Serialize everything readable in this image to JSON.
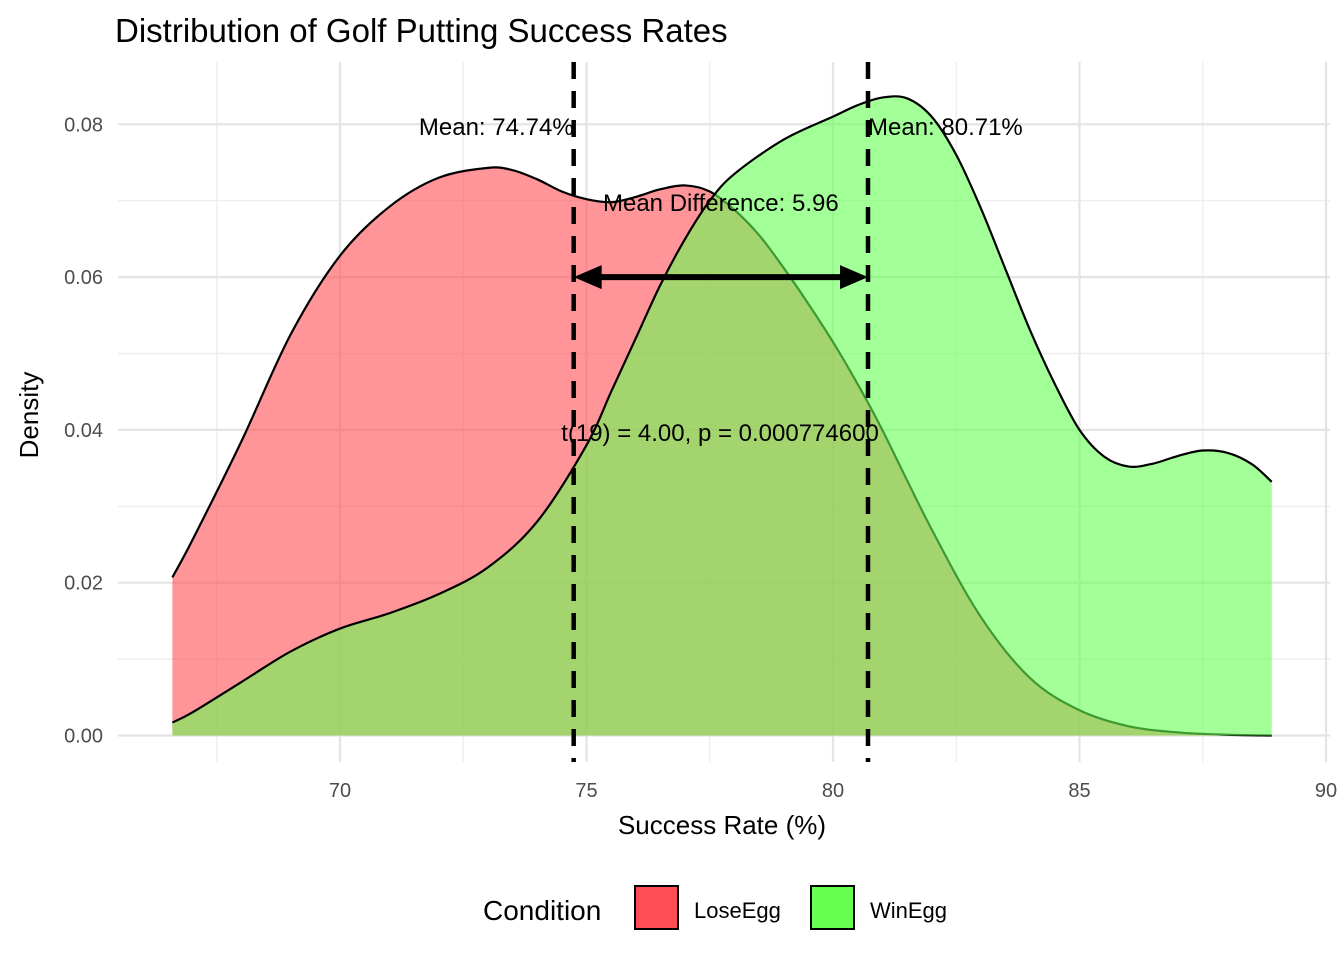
{
  "chart_data": {
    "type": "area",
    "title": "Distribution of Golf Putting Success Rates",
    "xlabel": "Success Rate (%)",
    "ylabel": "Density",
    "xlim": [
      66.5,
      90
    ],
    "ylim": [
      0,
      0.09
    ],
    "x_ticks": [
      70,
      75,
      80,
      85,
      90
    ],
    "x_tick_labels": [
      "70",
      "75",
      "80",
      "85",
      "90"
    ],
    "y_ticks": [
      0,
      0.02,
      0.04,
      0.06,
      0.08
    ],
    "y_tick_labels": [
      "0.00",
      "0.02",
      "0.04",
      "0.06",
      "0.08"
    ],
    "grid": true,
    "legend": {
      "title": "Condition",
      "position": "bottom",
      "entries": [
        {
          "label": "LoseEgg",
          "color": "#FF4D55"
        },
        {
          "label": "WinEgg",
          "color": "#66FF52"
        }
      ]
    },
    "series": [
      {
        "name": "LoseEgg",
        "color": "#FF4D55",
        "x": [
          66.6,
          67.0,
          68.0,
          69.0,
          70.0,
          71.0,
          72.0,
          73.0,
          73.5,
          74.0,
          74.5,
          75.0,
          75.5,
          76.0,
          76.5,
          77.0,
          77.5,
          78.0,
          78.5,
          79.0,
          79.5,
          80.0,
          80.5,
          81.0,
          82.0,
          83.0,
          84.0,
          85.0,
          86.0,
          87.0,
          88.0,
          88.9
        ],
        "y": [
          0.0207,
          0.0255,
          0.0385,
          0.0525,
          0.0628,
          0.0692,
          0.073,
          0.0743,
          0.074,
          0.0728,
          0.0712,
          0.0702,
          0.0698,
          0.0705,
          0.0715,
          0.072,
          0.0712,
          0.0688,
          0.0655,
          0.0612,
          0.0565,
          0.0515,
          0.046,
          0.04,
          0.027,
          0.0155,
          0.0075,
          0.0033,
          0.0012,
          0.0004,
          0.0001,
          0.0
        ]
      },
      {
        "name": "WinEgg",
        "color": "#66FF52",
        "x": [
          66.6,
          67.0,
          68.0,
          69.0,
          70.0,
          71.0,
          72.0,
          73.0,
          74.0,
          75.0,
          75.5,
          76.0,
          76.5,
          77.0,
          77.5,
          78.0,
          79.0,
          80.0,
          80.5,
          81.0,
          81.5,
          82.0,
          82.5,
          83.0,
          83.5,
          84.0,
          84.5,
          85.0,
          85.5,
          86.0,
          86.5,
          87.0,
          87.5,
          88.0,
          88.5,
          88.9
        ],
        "y": [
          0.0017,
          0.003,
          0.007,
          0.011,
          0.014,
          0.016,
          0.0185,
          0.022,
          0.028,
          0.038,
          0.045,
          0.052,
          0.059,
          0.065,
          0.07,
          0.0735,
          0.078,
          0.081,
          0.0825,
          0.0835,
          0.0834,
          0.081,
          0.076,
          0.069,
          0.061,
          0.053,
          0.046,
          0.04,
          0.0365,
          0.0352,
          0.0356,
          0.0366,
          0.0373,
          0.037,
          0.0355,
          0.0332
        ]
      }
    ],
    "mean_lines": [
      {
        "series": "LoseEgg",
        "x": 74.74,
        "label": "Mean: 74.74%"
      },
      {
        "series": "WinEgg",
        "x": 80.71,
        "label": "Mean: 80.71%"
      }
    ],
    "difference": {
      "label": "Mean Difference: 5.96",
      "from": 74.74,
      "to": 80.71,
      "y": 0.06
    },
    "test_label": "t(19) = 4.00, p = 0.000774600"
  }
}
